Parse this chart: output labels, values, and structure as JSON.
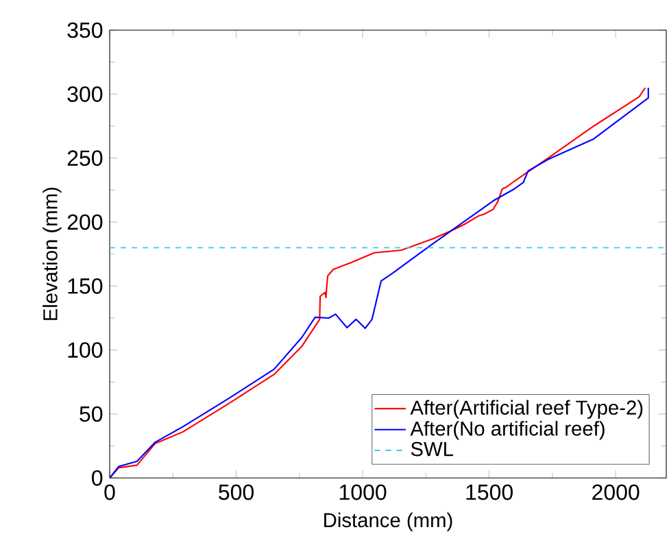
{
  "chart_data": {
    "type": "line",
    "xlabel": "Distance (mm)",
    "ylabel": "Elevation (mm)",
    "xlim": [
      0,
      2200
    ],
    "ylim": [
      0,
      350
    ],
    "xticks": [
      0,
      500,
      1000,
      1500,
      2000
    ],
    "yticks": [
      0,
      50,
      100,
      150,
      200,
      250,
      300,
      350
    ],
    "series": [
      {
        "name": "After(Artificial reef Type-2)",
        "color": "#ff0000",
        "x": [
          0,
          36,
          108,
          180,
          289,
          469,
          650,
          760,
          830,
          832,
          851,
          855,
          858,
          862,
          884,
          950,
          1046,
          1153,
          1278,
          1348,
          1400,
          1460,
          1478,
          1516,
          1534,
          1552,
          1565,
          1600,
          1733,
          1913,
          2093,
          2117
        ],
        "values": [
          0,
          8,
          10,
          27,
          36,
          58,
          81,
          103,
          124,
          142,
          145,
          141,
          150,
          158,
          163,
          168,
          176,
          178,
          187,
          193,
          198,
          205,
          206,
          210,
          216,
          226,
          227,
          232,
          250,
          275,
          298,
          305
        ]
      },
      {
        "name": "After(No artificial reef)",
        "color": "#0000ff",
        "x": [
          0,
          36,
          108,
          180,
          289,
          469,
          650,
          760,
          812,
          866,
          893,
          938,
          974,
          1010,
          1037,
          1073,
          1118,
          1263,
          1348,
          1516,
          1600,
          1635,
          1654,
          1733,
          1913,
          2129,
          2129
        ],
        "values": [
          0,
          9,
          13,
          28,
          40,
          62,
          85,
          110,
          125.6,
          125,
          128,
          117.5,
          124,
          117,
          124,
          154,
          160,
          181,
          193,
          216.6,
          226,
          231,
          240,
          249,
          265,
          297,
          305
        ]
      }
    ],
    "ref_lines": [
      {
        "axis": "y",
        "value": 180,
        "label": "SWL",
        "color": "#33ccee",
        "line_style": "dashed"
      }
    ],
    "legend": "bottom right",
    "grid": false
  }
}
